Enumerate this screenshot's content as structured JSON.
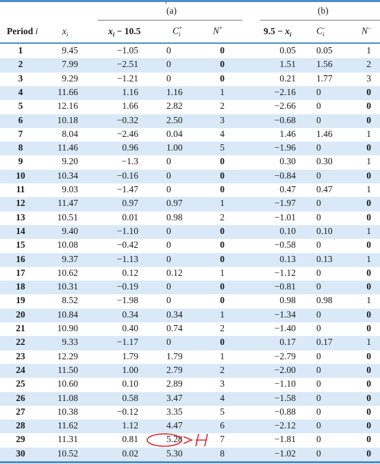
{
  "top_fragment": "p",
  "table": {
    "group_a": "(a)",
    "group_b": "(b)",
    "headers": [
      "Period i",
      "xi",
      "xi − 10.5",
      "Ci+",
      "N+",
      "9.5 − xi",
      "Ci−",
      "N−"
    ],
    "rows": [
      [
        "1",
        "9.45",
        "−1.05",
        "0",
        "0",
        "0.05",
        "0.05",
        "1"
      ],
      [
        "2",
        "7.99",
        "−2.51",
        "0",
        "0",
        "1.51",
        "1.56",
        "2"
      ],
      [
        "3",
        "9.29",
        "−1.21",
        "0",
        "0",
        "0.21",
        "1.77",
        "3"
      ],
      [
        "4",
        "11.66",
        "1.16",
        "1.16",
        "1",
        "−2.16",
        "0",
        "0"
      ],
      [
        "5",
        "12.16",
        "1.66",
        "2.82",
        "2",
        "−2.66",
        "0",
        "0"
      ],
      [
        "6",
        "10.18",
        "−0.32",
        "2.50",
        "3",
        "−0.68",
        "0",
        "0"
      ],
      [
        "7",
        "8.04",
        "−2.46",
        "0.04",
        "4",
        "1.46",
        "1.46",
        "1"
      ],
      [
        "8",
        "11.46",
        "0.96",
        "1.00",
        "5",
        "−1.96",
        "0",
        "0"
      ],
      [
        "9",
        "9.20",
        "−1.3",
        "0",
        "0",
        "0.30",
        "0.30",
        "1"
      ],
      [
        "10",
        "10.34",
        "−0.16",
        "0",
        "0",
        "−0.84",
        "0",
        "0"
      ],
      [
        "11",
        "9.03",
        "−1.47",
        "0",
        "0",
        "0.47",
        "0.47",
        "1"
      ],
      [
        "12",
        "11.47",
        "0.97",
        "0.97",
        "1",
        "−1.97",
        "0",
        "0"
      ],
      [
        "13",
        "10.51",
        "0.01",
        "0.98",
        "2",
        "−1.01",
        "0",
        "0"
      ],
      [
        "14",
        "9.40",
        "−1.10",
        "0",
        "0",
        "0.10",
        "0.10",
        "1"
      ],
      [
        "15",
        "10.08",
        "−0.42",
        "0",
        "0",
        "−0.58",
        "0",
        "0"
      ],
      [
        "16",
        "9.37",
        "−1.13",
        "0",
        "0",
        "0.13",
        "0.13",
        "1"
      ],
      [
        "17",
        "10.62",
        "0.12",
        "0.12",
        "1",
        "−1.12",
        "0",
        "0"
      ],
      [
        "18",
        "10.31",
        "−0.19",
        "0",
        "0",
        "−0.81",
        "0",
        "0"
      ],
      [
        "19",
        "8.52",
        "−1.98",
        "0",
        "0",
        "0.98",
        "0.98",
        "1"
      ],
      [
        "20",
        "10.84",
        "0.34",
        "0.34",
        "1",
        "−1.34",
        "0",
        "0"
      ],
      [
        "21",
        "10.90",
        "0.40",
        "0.74",
        "2",
        "−1.40",
        "0",
        "0"
      ],
      [
        "22",
        "9.33",
        "−1.17",
        "0",
        "0",
        "0.17",
        "0.17",
        "1"
      ],
      [
        "23",
        "12.29",
        "1.79",
        "1.79",
        "1",
        "−2.79",
        "0",
        "0"
      ],
      [
        "24",
        "11.50",
        "1.00",
        "2.79",
        "2",
        "−2.00",
        "0",
        "0"
      ],
      [
        "25",
        "10.60",
        "0.10",
        "2.89",
        "3",
        "−1.10",
        "0",
        "0"
      ],
      [
        "26",
        "11.08",
        "0.58",
        "3.47",
        "4",
        "−1.58",
        "0",
        "0"
      ],
      [
        "27",
        "10.38",
        "−0.12",
        "3.35",
        "5",
        "−0.88",
        "0",
        "0"
      ],
      [
        "28",
        "11.62",
        "1.12",
        "4.47",
        "6",
        "−2.12",
        "0",
        "0"
      ],
      [
        "29",
        "11.31",
        "0.81",
        "5.28",
        "7",
        "−1.81",
        "0",
        "0"
      ],
      [
        "30",
        "10.52",
        "0.02",
        "5.30",
        "8",
        "−1.02",
        "0",
        "0"
      ]
    ]
  },
  "annotation": {
    "text": "> H",
    "color": "#d8232a",
    "circled_value": "5.28"
  },
  "colors": {
    "stripe": "#d9e9f7",
    "rule": "#4a8cc7"
  }
}
